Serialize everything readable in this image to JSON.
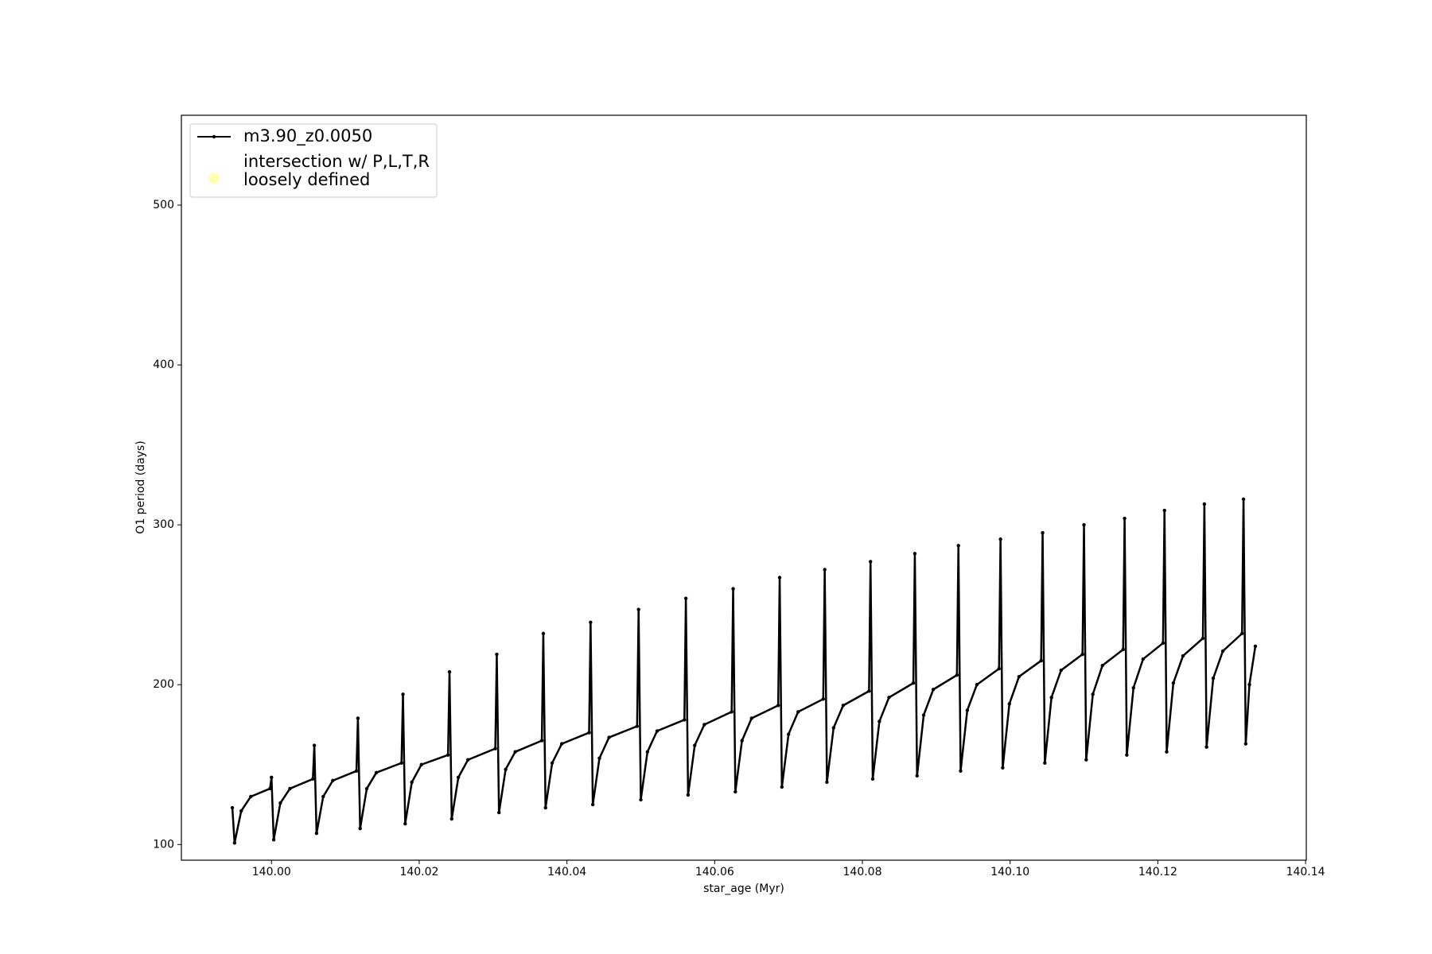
{
  "chart_data": {
    "type": "line",
    "xlabel": "star_age (Myr)",
    "ylabel": "O1 period (days)",
    "xlim": [
      139.9878,
      140.1401
    ],
    "ylim": [
      90.2,
      556.2
    ],
    "xticks": [
      {
        "value": 140.0,
        "label": "140.00"
      },
      {
        "value": 140.02,
        "label": "140.02"
      },
      {
        "value": 140.04,
        "label": "140.04"
      },
      {
        "value": 140.06,
        "label": "140.06"
      },
      {
        "value": 140.08,
        "label": "140.08"
      },
      {
        "value": 140.1,
        "label": "140.10"
      },
      {
        "value": 140.12,
        "label": "140.12"
      },
      {
        "value": 140.14,
        "label": "140.14"
      }
    ],
    "yticks": [
      100,
      200,
      300,
      400,
      500
    ],
    "grid": false,
    "legend": "upper left",
    "series": [
      {
        "name": "m3.90_z0.0050",
        "color": "#000000",
        "x": [
          139.9947,
          139.995,
          139.9959,
          139.9972,
          139.9998,
          140.0,
          140.0003,
          140.0012,
          140.0025,
          140.0056,
          140.0058,
          140.0061,
          140.007,
          140.0083,
          140.0115,
          140.0117,
          140.012,
          140.0129,
          140.0142,
          140.0176,
          140.0178,
          140.0181,
          140.019,
          140.0203,
          140.0239,
          140.0241,
          140.0244,
          140.0253,
          140.0266,
          140.0303,
          140.0305,
          140.0308,
          140.0317,
          140.033,
          140.0366,
          140.0368,
          140.0371,
          140.038,
          140.0393,
          140.043,
          140.0432,
          140.0435,
          140.0444,
          140.0457,
          140.0495,
          140.0497,
          140.05,
          140.0509,
          140.0522,
          140.0559,
          140.0561,
          140.0564,
          140.0573,
          140.0586,
          140.0623,
          140.0625,
          140.0628,
          140.0637,
          140.065,
          140.0686,
          140.0688,
          140.0691,
          140.07,
          140.0713,
          140.0747,
          140.0749,
          140.0752,
          140.0761,
          140.0774,
          140.0809,
          140.0811,
          140.0814,
          140.0823,
          140.0836,
          140.0869,
          140.0871,
          140.0874,
          140.0883,
          140.0896,
          140.0928,
          140.093,
          140.0933,
          140.0942,
          140.0955,
          140.0985,
          140.0987,
          140.099,
          140.0999,
          140.1012,
          140.1042,
          140.1044,
          140.1047,
          140.1056,
          140.1069,
          140.1098,
          140.11,
          140.1103,
          140.1112,
          140.1125,
          140.1153,
          140.1155,
          140.1158,
          140.1167,
          140.118,
          140.1207,
          140.1209,
          140.1212,
          140.1221,
          140.1234,
          140.1261,
          140.1263,
          140.1266,
          140.1275,
          140.1288,
          140.1314,
          140.1316,
          140.1319,
          140.1324,
          140.1332
        ],
        "values": [
          123,
          101,
          121,
          130,
          135,
          142,
          103,
          126,
          135,
          141,
          162,
          107,
          130,
          140,
          146,
          179,
          110,
          135,
          145,
          151,
          194,
          113,
          139,
          150,
          156,
          208,
          116,
          142,
          153,
          160,
          219,
          120,
          147,
          158,
          165,
          232,
          123,
          151,
          163,
          170,
          239,
          125,
          154,
          167,
          174,
          247,
          128,
          158,
          171,
          178,
          254,
          131,
          162,
          175,
          183,
          260,
          133,
          165,
          179,
          187,
          267,
          136,
          169,
          183,
          191,
          272,
          139,
          173,
          187,
          196,
          277,
          141,
          177,
          192,
          201,
          282,
          143,
          181,
          197,
          206,
          287,
          146,
          184,
          200,
          210,
          291,
          148,
          188,
          205,
          215,
          295,
          151,
          192,
          209,
          219,
          300,
          153,
          194,
          212,
          222,
          304,
          156,
          198,
          216,
          226,
          309,
          158,
          201,
          218,
          229,
          313,
          161,
          204,
          221,
          232,
          316,
          163,
          200,
          224
        ]
      },
      {
        "name": "intersection w/ P,L,T,R\nloosely defined",
        "color": "#ffffb3",
        "x": [],
        "values": []
      }
    ]
  }
}
